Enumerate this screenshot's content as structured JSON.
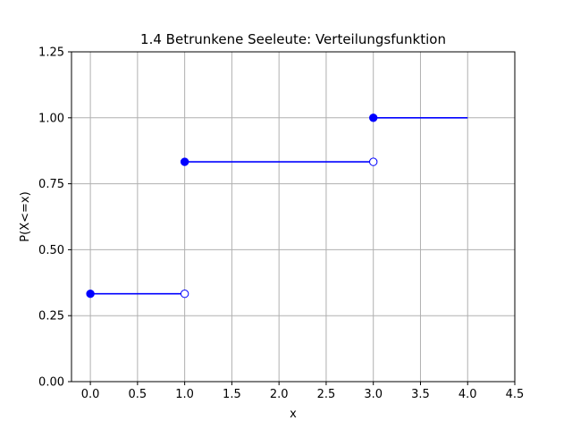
{
  "chart_data": {
    "type": "line",
    "title": "1.4 Betrunkene Seeleute: Verteilungsfunktion",
    "xlabel": "x",
    "ylabel": "P(X<=x)",
    "xlim": [
      -0.2,
      4.5
    ],
    "ylim": [
      0.0,
      1.25
    ],
    "xticks": [
      "0.0",
      "0.5",
      "1.0",
      "1.5",
      "2.0",
      "2.5",
      "3.0",
      "3.5",
      "4.0",
      "4.5"
    ],
    "yticks": [
      "0.00",
      "0.25",
      "0.50",
      "0.75",
      "1.00",
      "1.25"
    ],
    "grid": true,
    "color": "#0000ff",
    "steps": [
      {
        "x_start": 0.0,
        "x_end": 1.0,
        "y": 0.333,
        "start_closed": true,
        "end_open": true
      },
      {
        "x_start": 1.0,
        "x_end": 3.0,
        "y": 0.833,
        "start_closed": true,
        "end_open": true
      },
      {
        "x_start": 3.0,
        "x_end": 4.0,
        "y": 1.0,
        "start_closed": true,
        "end_open": false
      }
    ]
  }
}
